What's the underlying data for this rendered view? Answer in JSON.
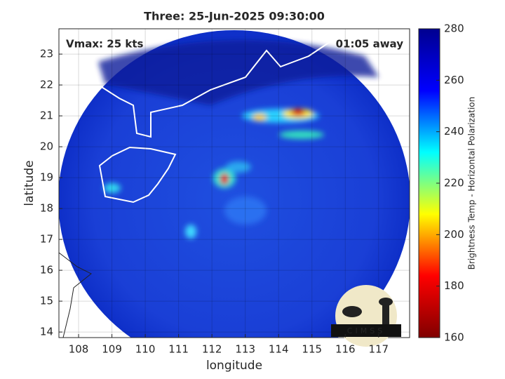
{
  "chart_data": {
    "type": "map",
    "title": "Three: 25-Jun-2025 09:30:00",
    "xlabel": "longitude",
    "ylabel": "latitude",
    "xlim": [
      107.41,
      117.93
    ],
    "xticks": [
      108,
      109,
      110,
      111,
      112,
      113,
      114,
      115,
      116,
      117
    ],
    "ylim": [
      13.82,
      23.82
    ],
    "yticks": [
      14,
      15,
      16,
      17,
      18,
      19,
      20,
      21,
      22,
      23
    ],
    "grid": true,
    "annotations": [
      "Vmax: 25 kts",
      "01:05 away"
    ],
    "logo": "CIMSS",
    "colorbar": {
      "label": "Brightness Temp - Horizontal Polarization",
      "colormap": "jet",
      "clim": [
        160,
        280
      ],
      "ticks": [
        160,
        180,
        200,
        220,
        240,
        260,
        280
      ]
    }
  }
}
